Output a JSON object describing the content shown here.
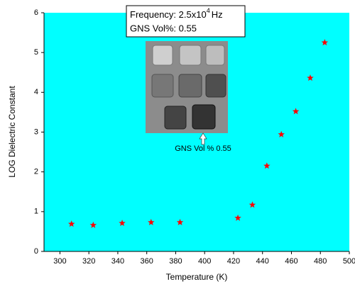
{
  "chart_data": {
    "type": "scatter",
    "x_label": "Temperature (K)",
    "y_label": "LOG Dielectric Constant",
    "x": [
      308,
      323,
      343,
      363,
      383,
      423,
      433,
      443,
      453,
      463,
      473,
      483
    ],
    "series": [
      {
        "color": "#ff0000",
        "marker": "star",
        "values": [
          0.69,
          0.66,
          0.71,
          0.73,
          0.73,
          0.84,
          1.17,
          2.15,
          2.94,
          3.52,
          4.36,
          5.25
        ]
      }
    ],
    "xlim": [
      289,
      500
    ],
    "xticks": [
      300,
      320,
      340,
      360,
      380,
      400,
      420,
      440,
      460,
      480,
      500
    ],
    "ylim": [
      0,
      6
    ],
    "yticks": [
      0,
      1,
      2,
      3,
      4,
      5,
      6
    ],
    "plot_background": "#00ffff",
    "annotation": {
      "frequency_text": "Frequency: 2.5x10",
      "frequency_exponent": "4",
      "frequency_unit": "Hz",
      "gns_text": "GNS Vol%: 0.55"
    },
    "inset_caption": "GNS Vol % 0.55"
  }
}
